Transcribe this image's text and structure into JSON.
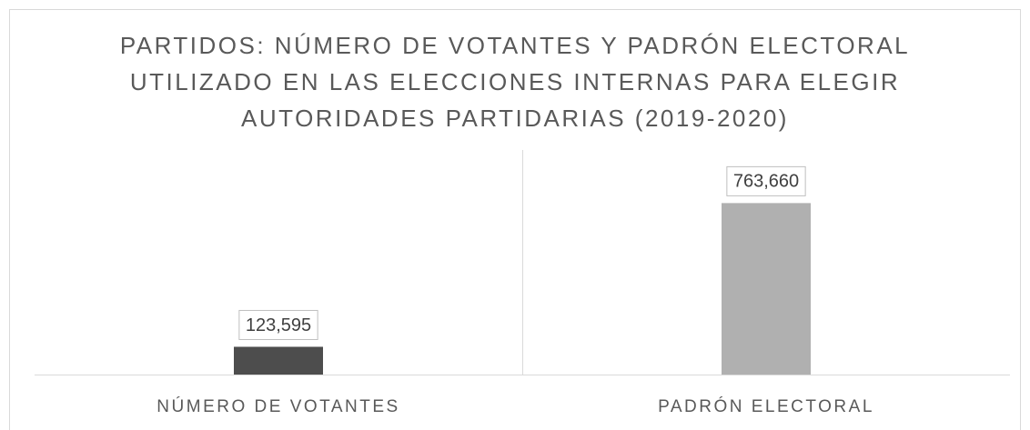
{
  "chart_data": {
    "type": "bar",
    "title": "PARTIDOS: NÚMERO DE VOTANTES Y PADRÓN ELECTORAL UTILIZADO EN LAS ELECCIONES INTERNAS PARA ELEGIR AUTORIDADES PARTIDARIAS (2019-2020)",
    "categories": [
      "NÚMERO DE VOTANTES",
      "PADRÓN ELECTORAL"
    ],
    "values": [
      123595,
      763660
    ],
    "value_labels": [
      "123,595",
      "763,660"
    ],
    "colors": [
      "#4d4d4d",
      "#b0b0b0"
    ],
    "ylim": [
      0,
      1000000
    ]
  }
}
